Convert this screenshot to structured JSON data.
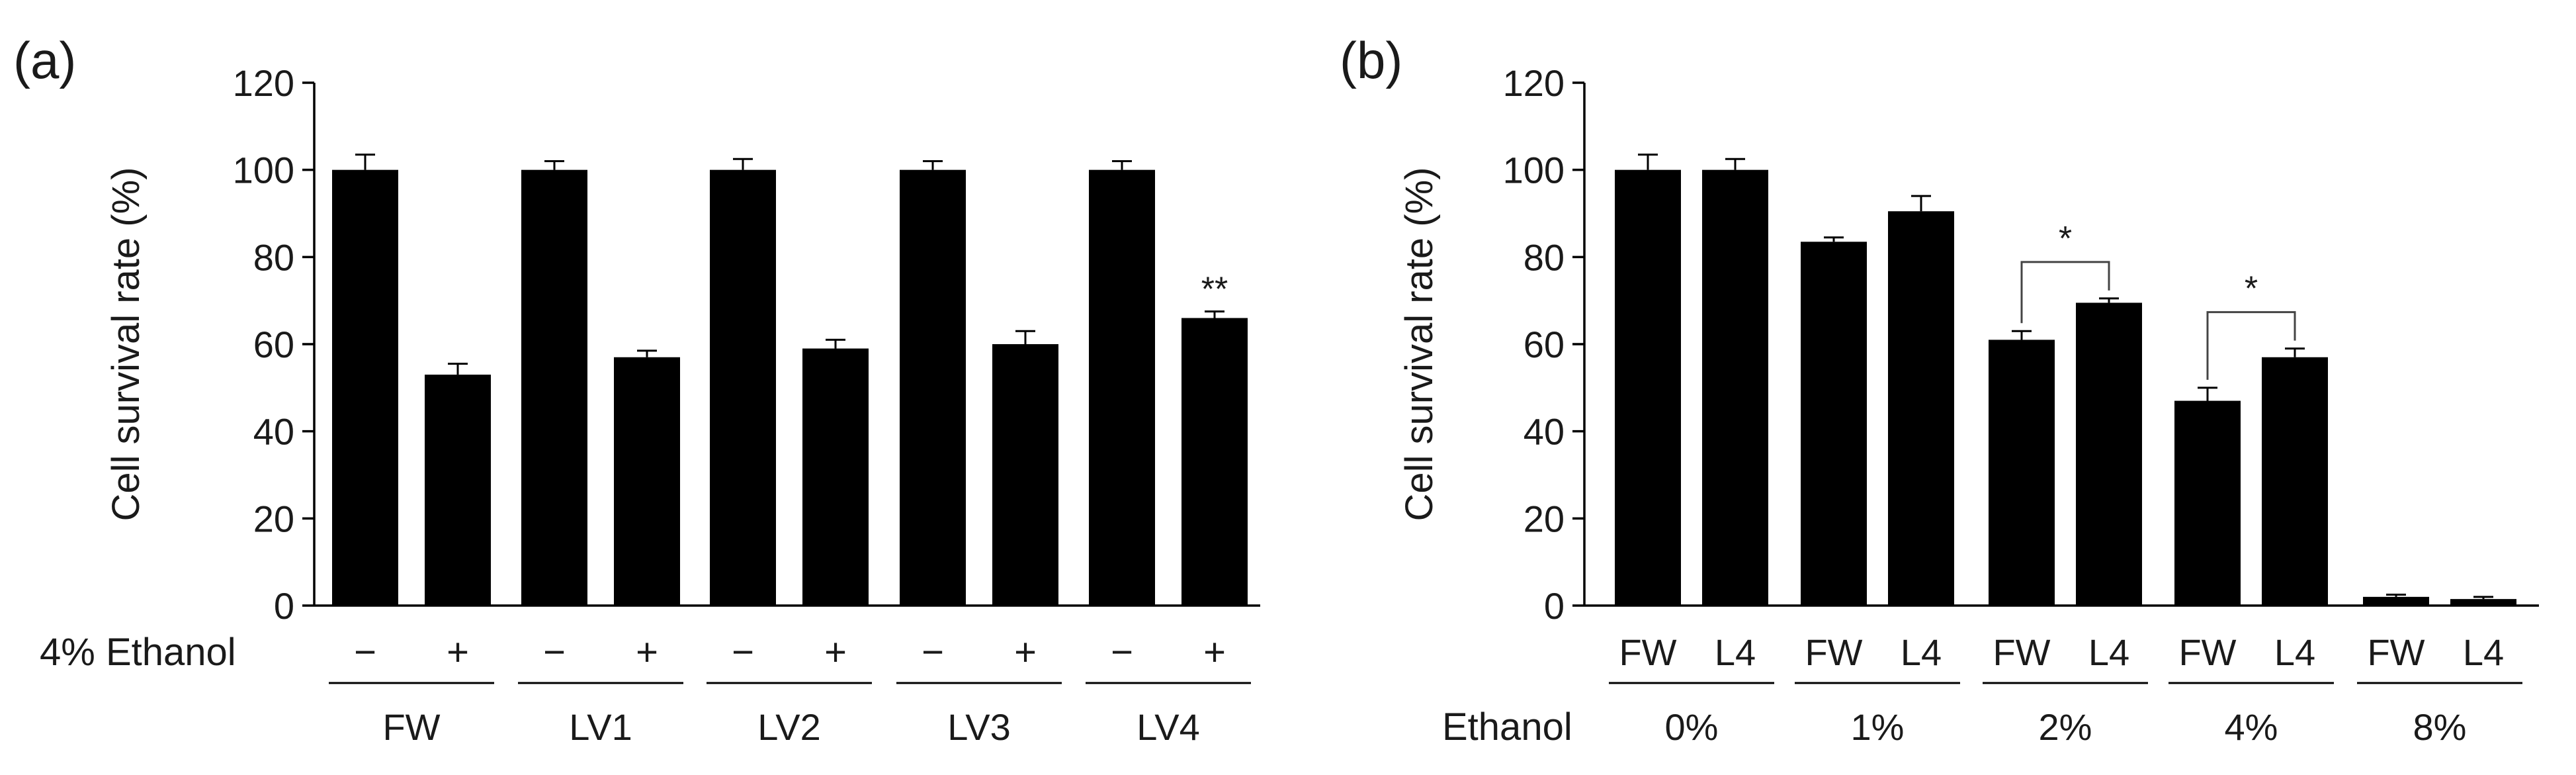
{
  "chart_data": [
    {
      "type": "bar",
      "panel_label": "(a)",
      "ylabel": "Cell survival rate (%)",
      "ylim": [
        0,
        120
      ],
      "yticks": [
        "0",
        "20",
        "40",
        "60",
        "80",
        "100",
        "120"
      ],
      "condition_label": "4% Ethanol",
      "bar_symbols": [
        "−",
        "+"
      ],
      "groups": [
        {
          "label": "FW",
          "values": [
            100,
            53
          ],
          "errors": [
            3.5,
            2.5
          ],
          "significance": [
            "",
            ""
          ]
        },
        {
          "label": "LV1",
          "values": [
            100,
            57
          ],
          "errors": [
            2.0,
            1.5
          ],
          "significance": [
            "",
            ""
          ]
        },
        {
          "label": "LV2",
          "values": [
            100,
            59
          ],
          "errors": [
            2.5,
            2.0
          ],
          "significance": [
            "",
            ""
          ]
        },
        {
          "label": "LV3",
          "values": [
            100,
            60
          ],
          "errors": [
            2.0,
            3.0
          ],
          "significance": [
            "",
            ""
          ]
        },
        {
          "label": "LV4",
          "values": [
            100,
            66
          ],
          "errors": [
            2.0,
            1.5
          ],
          "significance": [
            "",
            "**"
          ]
        }
      ]
    },
    {
      "type": "bar",
      "panel_label": "(b)",
      "ylabel": "Cell survival rate (%)",
      "ylim": [
        0,
        120
      ],
      "yticks": [
        "0",
        "20",
        "40",
        "60",
        "80",
        "100",
        "120"
      ],
      "condition_label": "Ethanol",
      "groups": [
        {
          "label": "0%",
          "bar_labels": [
            "FW",
            "L4"
          ],
          "values": [
            100,
            100
          ],
          "errors": [
            3.5,
            2.5
          ],
          "bracket": ""
        },
        {
          "label": "1%",
          "bar_labels": [
            "FW",
            "L4"
          ],
          "values": [
            83.5,
            90.5
          ],
          "errors": [
            1.0,
            3.5
          ],
          "bracket": ""
        },
        {
          "label": "2%",
          "bar_labels": [
            "FW",
            "L4"
          ],
          "values": [
            61,
            69.5
          ],
          "errors": [
            2.0,
            1.0
          ],
          "bracket": "*"
        },
        {
          "label": "4%",
          "bar_labels": [
            "FW",
            "L4"
          ],
          "values": [
            47,
            57
          ],
          "errors": [
            3.0,
            2.0
          ],
          "bracket": "*"
        },
        {
          "label": "8%",
          "bar_labels": [
            "FW",
            "L4"
          ],
          "values": [
            2,
            1.5
          ],
          "errors": [
            0.5,
            0.5
          ],
          "bracket": ""
        }
      ]
    }
  ]
}
